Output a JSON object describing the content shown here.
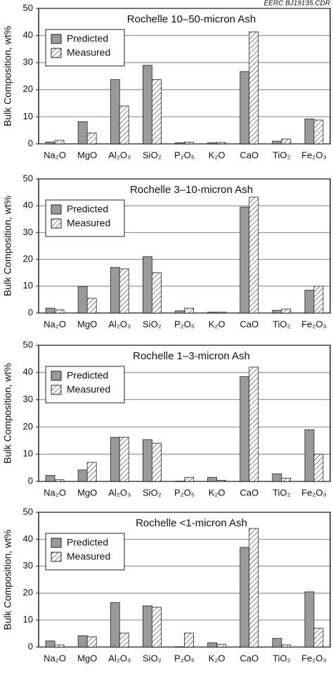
{
  "chart_data": [
    {
      "type": "bar",
      "title": "Rochelle 10–50-micron Ash",
      "annotation": "EERC BJ19135.CDR",
      "y_label": "Bulk Composition, wt%",
      "categories": [
        "Na₂O",
        "MgO",
        "Al₂O₃",
        "SiO₂",
        "P₂O₅",
        "K₂O",
        "CaO",
        "TiO₂",
        "Fe₂O₃"
      ],
      "series": [
        {
          "name": "Predicted",
          "color": "#9a9a9a",
          "values": [
            0.7,
            8.2,
            23.7,
            29,
            0.4,
            0.4,
            26.7,
            1.0,
            9.2
          ]
        },
        {
          "name": "Measured",
          "color": "#ffffff",
          "pattern": "hatch",
          "values": [
            1.3,
            4.0,
            14,
            23.7,
            0.6,
            0.5,
            41.3,
            1.8,
            8.8
          ]
        }
      ],
      "ylim": [
        0,
        50
      ],
      "yticks": [
        0,
        10,
        20,
        30,
        40,
        50
      ],
      "grid": true,
      "legend": "upper left"
    },
    {
      "type": "bar",
      "title": "Rochelle 3–10-micron Ash",
      "y_label": "Bulk Composition, wt%",
      "categories": [
        "Na₂O",
        "MgO",
        "Al₂O₃",
        "SiO₂",
        "P₂O₅",
        "K₂O",
        "CaO",
        "TiO₂",
        "Fe₂O₃"
      ],
      "series": [
        {
          "name": "Predicted",
          "color": "#9a9a9a",
          "values": [
            1.8,
            9.8,
            17,
            21,
            0.8,
            0.3,
            39.5,
            1.0,
            8.5
          ]
        },
        {
          "name": "Measured",
          "color": "#ffffff",
          "pattern": "hatch",
          "values": [
            1.2,
            5.5,
            16.5,
            15,
            1.8,
            0.3,
            43.2,
            1.5,
            10
          ]
        }
      ],
      "ylim": [
        0,
        50
      ],
      "yticks": [
        0,
        10,
        20,
        30,
        40,
        50
      ],
      "grid": true,
      "legend": "upper left"
    },
    {
      "type": "bar",
      "title": "Rochelle 1–3-micron Ash",
      "y_label": "Bulk Composition, wt%",
      "categories": [
        "Na₂O",
        "MgO",
        "Al₂O₃",
        "SiO₂",
        "P₂O₅",
        "K₂O",
        "CaO",
        "TiO₂",
        "Fe₂O₃"
      ],
      "series": [
        {
          "name": "Predicted",
          "color": "#9a9a9a",
          "values": [
            2.2,
            4.2,
            16.2,
            15.3,
            0.1,
            1.5,
            38.5,
            2.8,
            19
          ]
        },
        {
          "name": "Measured",
          "color": "#ffffff",
          "pattern": "hatch",
          "values": [
            0.6,
            7.0,
            16.2,
            14,
            1.5,
            0.4,
            42,
            1.2,
            10
          ]
        }
      ],
      "ylim": [
        0,
        50
      ],
      "yticks": [
        0,
        10,
        20,
        30,
        40,
        50
      ],
      "grid": true,
      "legend": "upper left"
    },
    {
      "type": "bar",
      "title": "Rochelle <1-micron Ash",
      "y_label": "Bulk Composition, wt%",
      "categories": [
        "Na₂O",
        "MgO",
        "Al₂O₃",
        "SiO₂",
        "P₂O₅",
        "K₂O",
        "CaO",
        "TiO₂",
        "Fe₂O₃"
      ],
      "series": [
        {
          "name": "Predicted",
          "color": "#9a9a9a",
          "values": [
            2.3,
            4.2,
            16.5,
            15.3,
            0.1,
            1.6,
            37,
            3.2,
            20.5
          ]
        },
        {
          "name": "Measured",
          "color": "#ffffff",
          "pattern": "hatch",
          "values": [
            0.8,
            3.8,
            5.2,
            14.8,
            5.2,
            1.0,
            44,
            0.8,
            7
          ]
        }
      ],
      "ylim": [
        0,
        50
      ],
      "yticks": [
        0,
        10,
        20,
        30,
        40,
        50
      ],
      "grid": true,
      "legend": "upper left"
    }
  ]
}
